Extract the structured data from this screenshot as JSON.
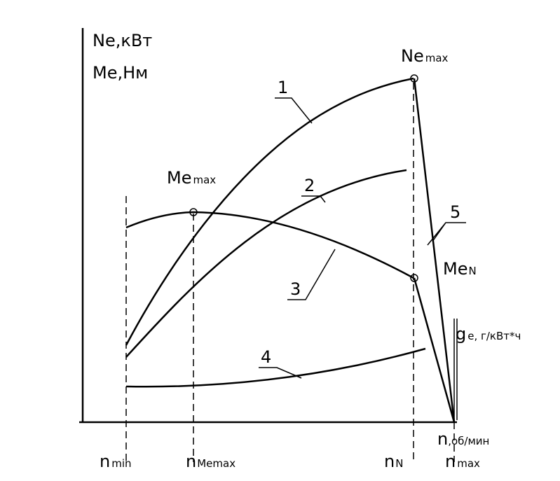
{
  "axes": {
    "y_left_1": "Ne,кВт",
    "y_left_2": "Me,Нм",
    "y_right": {
      "main": "g",
      "sub": "e, г/кВт*ч"
    },
    "x": {
      "main": "n",
      "sub": ",об/мин"
    }
  },
  "points": {
    "ne_max": {
      "main": "Ne",
      "sub": "max"
    },
    "me_max": {
      "main": "Me",
      "sub": "max"
    },
    "me_n": {
      "main": "Me",
      "sub": "N"
    }
  },
  "x_labels": [
    {
      "main": "n",
      "sub": "min"
    },
    {
      "main": "n",
      "sub": "Memax"
    },
    {
      "main": "n",
      "sub": "N"
    },
    {
      "main": "n",
      "sub": "max"
    }
  ],
  "curve_labels": [
    "1",
    "2",
    "3",
    "4",
    "5"
  ]
}
